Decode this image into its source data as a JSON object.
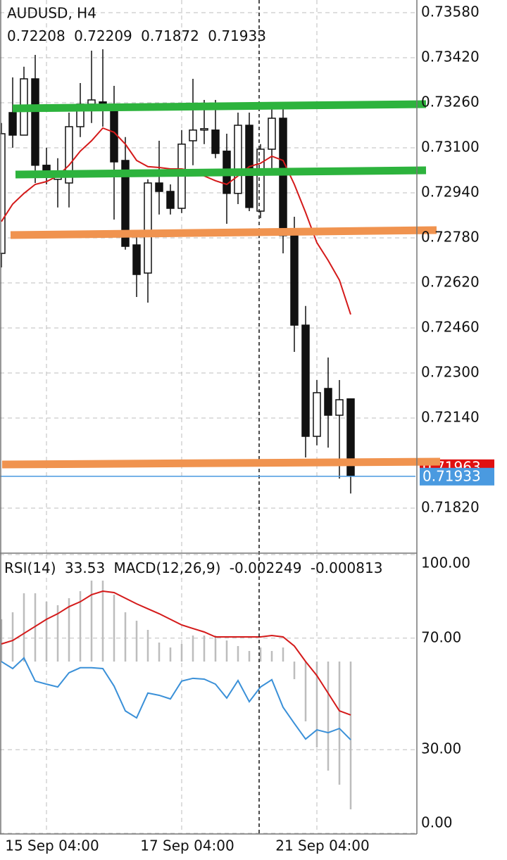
{
  "chart_data": [
    {
      "type": "candlestick",
      "title": "AUDUSD, H4",
      "categories": [
        null,
        null,
        null,
        null,
        "15 Sep 04:00",
        null,
        null,
        null,
        null,
        null,
        null,
        null,
        null,
        null,
        null,
        null,
        "17 Sep 04:00",
        null,
        null,
        null,
        null,
        null,
        null,
        null,
        null,
        null,
        null,
        null,
        "21 Sep 04:00",
        null,
        null,
        null
      ],
      "open": [
        0.72725,
        0.73225,
        0.73145,
        0.73345,
        0.73038,
        0.72988,
        0.72975,
        0.73175,
        0.73255,
        0.73263,
        0.7325,
        0.73055,
        0.72755,
        0.72655,
        0.72975,
        0.72945,
        0.72885,
        0.73125,
        0.73163,
        0.73163,
        0.73088,
        0.72938,
        0.7318,
        0.72875,
        0.73095,
        0.73205,
        0.72788,
        0.7247,
        0.72075,
        0.72245,
        0.7215,
        0.72208
      ],
      "high": [
        0.73188,
        0.7335,
        0.73388,
        0.7343,
        0.731,
        0.73063,
        0.73225,
        0.7333,
        0.73445,
        0.7345,
        0.7332,
        0.73138,
        0.728,
        0.72988,
        0.73125,
        0.7297,
        0.73163,
        0.73345,
        0.7327,
        0.7327,
        0.7315,
        0.73225,
        0.73225,
        0.73113,
        0.7325,
        0.7325,
        0.72855,
        0.72538,
        0.72275,
        0.72355,
        0.72275,
        0.72209
      ],
      "low": [
        0.72675,
        0.731,
        0.73145,
        0.72975,
        0.7297,
        0.72888,
        0.72888,
        0.73138,
        0.73188,
        0.73175,
        0.72845,
        0.72738,
        0.7257,
        0.7255,
        0.72863,
        0.72863,
        0.72868,
        0.73038,
        0.73113,
        0.73063,
        0.7283,
        0.729,
        0.72875,
        0.7285,
        0.73025,
        0.72725,
        0.72375,
        0.72,
        0.72043,
        0.72035,
        0.71925,
        0.71872
      ],
      "close": [
        0.7315,
        0.73145,
        0.73345,
        0.73038,
        0.73013,
        0.73013,
        0.73175,
        0.73255,
        0.7327,
        0.7325,
        0.7305,
        0.7275,
        0.7265,
        0.72975,
        0.72945,
        0.72885,
        0.73113,
        0.73163,
        0.73168,
        0.7308,
        0.72938,
        0.7318,
        0.72888,
        0.73095,
        0.73205,
        0.72788,
        0.7247,
        0.72075,
        0.7223,
        0.7215,
        0.72205,
        0.71933
      ],
      "moving_average": [
        0.72838,
        0.729,
        0.72938,
        0.7297,
        0.7298,
        0.73,
        0.73038,
        0.73088,
        0.73125,
        0.7317,
        0.73155,
        0.73113,
        0.73055,
        0.73033,
        0.7303,
        0.73025,
        0.73025,
        0.73018,
        0.73,
        0.72983,
        0.7297,
        0.73,
        0.73033,
        0.73045,
        0.7307,
        0.73055,
        0.7297,
        0.7287,
        0.72763,
        0.727,
        0.7263,
        0.72508
      ],
      "moving_average_color": "#d41a1a",
      "ask": 0.71963,
      "ask_color": "#e01010",
      "bid_color": "#4a9ae0",
      "ylim": [
        0.716625,
        0.73625
      ],
      "yticks": [
        {
          "value": 0.7358,
          "label": "0.73580"
        },
        {
          "value": 0.7342,
          "label": "0.73420"
        },
        {
          "value": 0.7326,
          "label": "0.73260"
        },
        {
          "value": 0.731,
          "label": "0.73100"
        },
        {
          "value": 0.7294,
          "label": "0.72940"
        },
        {
          "value": 0.7278,
          "label": "0.72780"
        },
        {
          "value": 0.7262,
          "label": "0.72620"
        },
        {
          "value": 0.7246,
          "label": "0.72460"
        },
        {
          "value": 0.723,
          "label": "0.72300"
        },
        {
          "value": 0.7214,
          "label": "0.72140"
        },
        {
          "value": 0.7182,
          "label": "0.71820"
        }
      ],
      "grid": true
    },
    {
      "type": "oscillator",
      "series": [
        {
          "name": "RSI(14)",
          "color": "#3a90d8",
          "values": [
            61.6,
            59.1,
            62.9,
            54.6,
            53.5,
            52.5,
            57.6,
            59.4,
            59.4,
            59.1,
            52.8,
            43.9,
            41.4,
            50.3,
            49.5,
            48.2,
            54.6,
            55.6,
            55.3,
            53.5,
            48.5,
            54.8,
            47.2,
            52.5,
            55.1,
            45.2,
            39.4,
            33.8,
            37.1,
            36.1,
            37.6,
            33.53
          ]
        },
        {
          "name": "MACD(12,26,9)",
          "color": "#bdbdbd",
          "axis": "y2",
          "values": [
            0.000643,
            0.00075,
            0.001039,
            0.001039,
            0.00091,
            0.000857,
            0.000964,
            0.001071,
            0.001232,
            0.001232,
            0.001017,
            0.00075,
            0.000621,
            0.000482,
            0.000289,
            0.000214,
            0.000268,
            0.000396,
            0.000396,
            0.000396,
            0.000321,
            0.000236,
            0.000161,
            0.000214,
            0.000161,
            0.000214,
            -0.000268,
            -0.00091,
            -0.001307,
            -0.00166,
            -0.001874,
            -0.002249
          ]
        },
        {
          "color": "#d41a1a",
          "axis": "y2",
          "values": [
            0.000268,
            0.000321,
            0.000428,
            0.000535,
            0.000643,
            0.000728,
            0.000835,
            0.00091,
            0.001017,
            0.001071,
            0.00105,
            0.000964,
            0.000878,
            0.000803,
            0.000728,
            0.000643,
            0.000557,
            0.000503,
            0.00045,
            0.000375,
            0.000375,
            0.000375,
            0.000375,
            0.000375,
            0.000396,
            0.000375,
            0.000236,
            0,
            -0.000214,
            -0.000482,
            -0.00075,
            -0.000813
          ]
        }
      ],
      "ylim": [
        0,
        100
      ],
      "yticks": [
        {
          "value": 100,
          "label": "100.00"
        },
        {
          "value": 70,
          "label": "70.00"
        },
        {
          "value": 30,
          "label": "30.00"
        },
        {
          "value": 0,
          "label": "0.00"
        }
      ],
      "y2lim": [
        -0.002613,
        0.001628
      ],
      "grid": true
    }
  ]
}
